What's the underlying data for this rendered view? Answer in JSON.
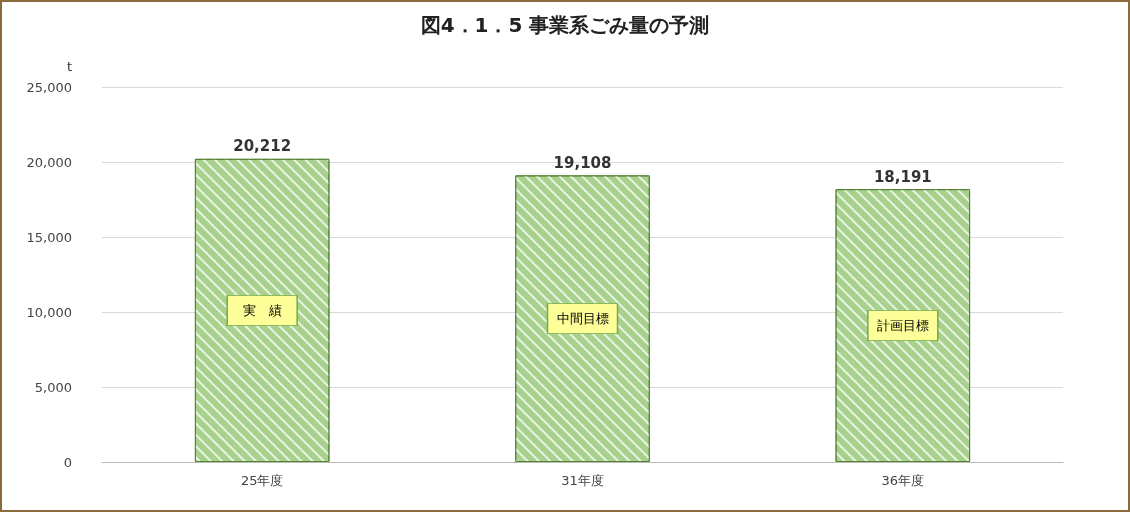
{
  "chart_data": {
    "type": "bar",
    "title": "図4．1．5 事業系ごみ量の予測",
    "ylabel": "t",
    "categories": [
      "25年度",
      "31年度",
      "36年度"
    ],
    "values": [
      20212,
      19108,
      18191
    ],
    "color": "#a9d18e",
    "value_labels": [
      "20,212",
      "19,108",
      "18,191"
    ],
    "ylim": [
      0,
      25000
    ],
    "yticks": [
      0,
      {
        "value": 5000,
        "label": "5,000"
      },
      {
        "value": 10000,
        "label": "10,000"
      },
      {
        "value": 15000,
        "label": "15,000"
      },
      {
        "value": 20000,
        "label": "20,000"
      },
      {
        "value": 25000,
        "label": "25,000"
      }
    ],
    "grid": "y",
    "annotations": [
      "実　績",
      "中間目標",
      "計画目標"
    ]
  }
}
